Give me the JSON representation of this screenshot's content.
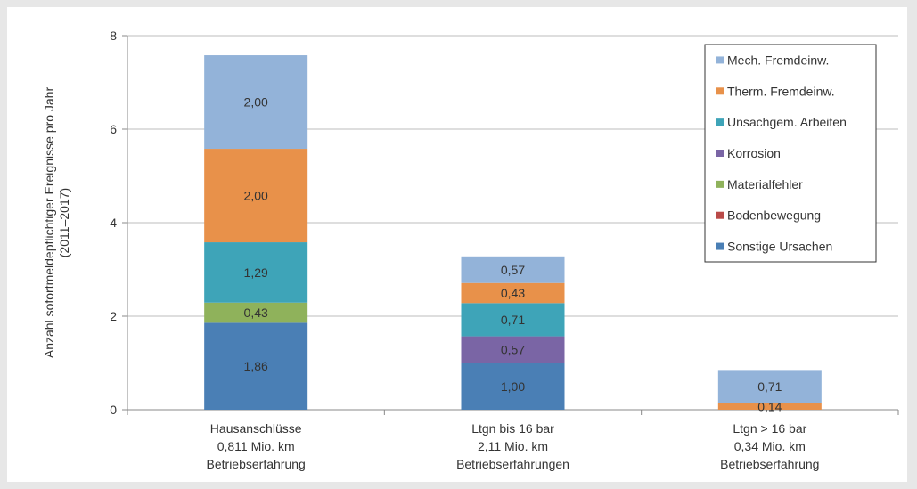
{
  "chart_data": {
    "type": "bar",
    "stacked": true,
    "categories": [
      [
        "Hausanschlüsse",
        "0,811 Mio. km",
        "Betriebserfahrung"
      ],
      [
        "Ltgn bis 16 bar",
        "2,11 Mio. km",
        "Betriebserfahrungen"
      ],
      [
        "Ltgn > 16 bar",
        "0,34 Mio. km",
        "Betriebserfahrung"
      ]
    ],
    "ylabel": [
      "Anzahl sofortmeldepflichtiger Ereignisse pro Jahr",
      "(2011–2017)"
    ],
    "ylim": [
      0,
      8
    ],
    "yticks": [
      "0",
      "2",
      "4",
      "6",
      "8"
    ],
    "grid": true,
    "legend_position": "top-right",
    "series": [
      {
        "name": "Sonstige Ursachen",
        "color": "#4a7fb5",
        "values": [
          1.86,
          1.0,
          0
        ],
        "labels": [
          "1,86",
          "1,00",
          ""
        ]
      },
      {
        "name": "Bodenbewegung",
        "color": "#b94a48",
        "values": [
          0,
          0,
          0
        ],
        "labels": [
          "",
          "",
          ""
        ]
      },
      {
        "name": "Materialfehler",
        "color": "#8fb25b",
        "values": [
          0.43,
          0,
          0
        ],
        "labels": [
          "0,43",
          "",
          ""
        ]
      },
      {
        "name": "Korrosion",
        "color": "#7a65a5",
        "values": [
          0,
          0.57,
          0
        ],
        "labels": [
          "",
          "0,57",
          ""
        ]
      },
      {
        "name": "Unsachgem. Arbeiten",
        "color": "#3ea4b8",
        "values": [
          1.29,
          0.71,
          0
        ],
        "labels": [
          "1,29",
          "0,71",
          ""
        ]
      },
      {
        "name": "Therm. Fremdeinw.",
        "color": "#e8914a",
        "values": [
          2.0,
          0.43,
          0.14
        ],
        "labels": [
          "2,00",
          "0,43",
          "0,14"
        ]
      },
      {
        "name": "Mech. Fremdeinw.",
        "color": "#93b3d9",
        "values": [
          2.0,
          0.57,
          0.71
        ],
        "labels": [
          "2,00",
          "0,57",
          "0,71"
        ]
      }
    ]
  }
}
